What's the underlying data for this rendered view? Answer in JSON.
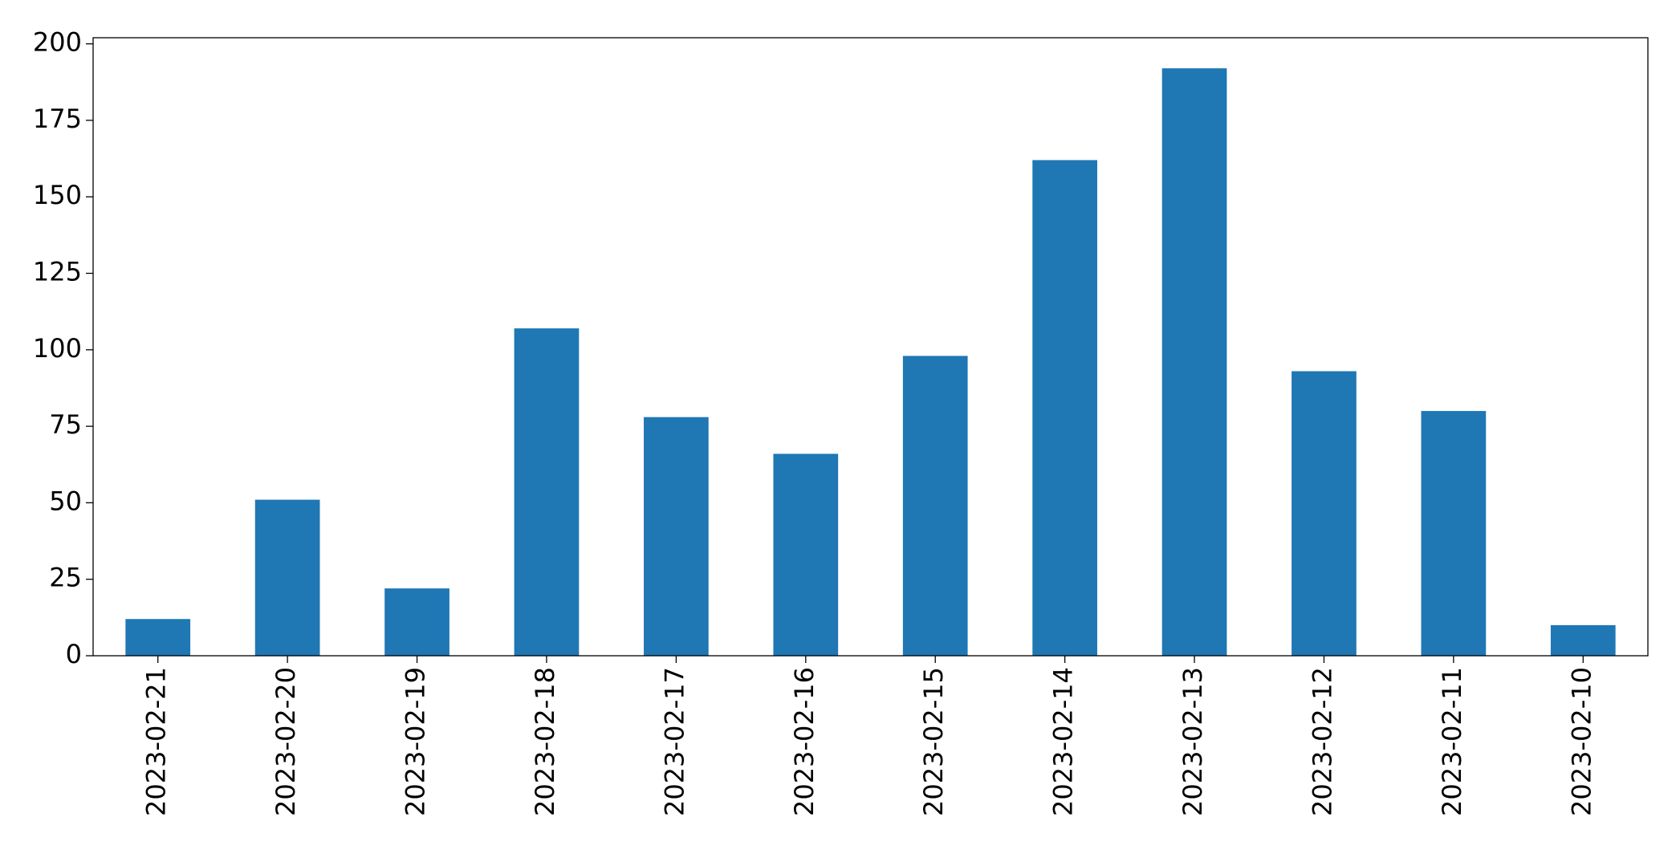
{
  "chart_data": {
    "type": "bar",
    "categories": [
      "2023-02-21",
      "2023-02-20",
      "2023-02-19",
      "2023-02-18",
      "2023-02-17",
      "2023-02-16",
      "2023-02-15",
      "2023-02-14",
      "2023-02-13",
      "2023-02-12",
      "2023-02-11",
      "2023-02-10"
    ],
    "values": [
      12,
      51,
      22,
      107,
      78,
      66,
      98,
      162,
      192,
      93,
      80,
      10
    ],
    "color": "#1f77b4",
    "ylim": [
      0,
      202
    ],
    "yticks": [
      0,
      25,
      50,
      75,
      100,
      125,
      150,
      175,
      200
    ],
    "grid": false
  }
}
